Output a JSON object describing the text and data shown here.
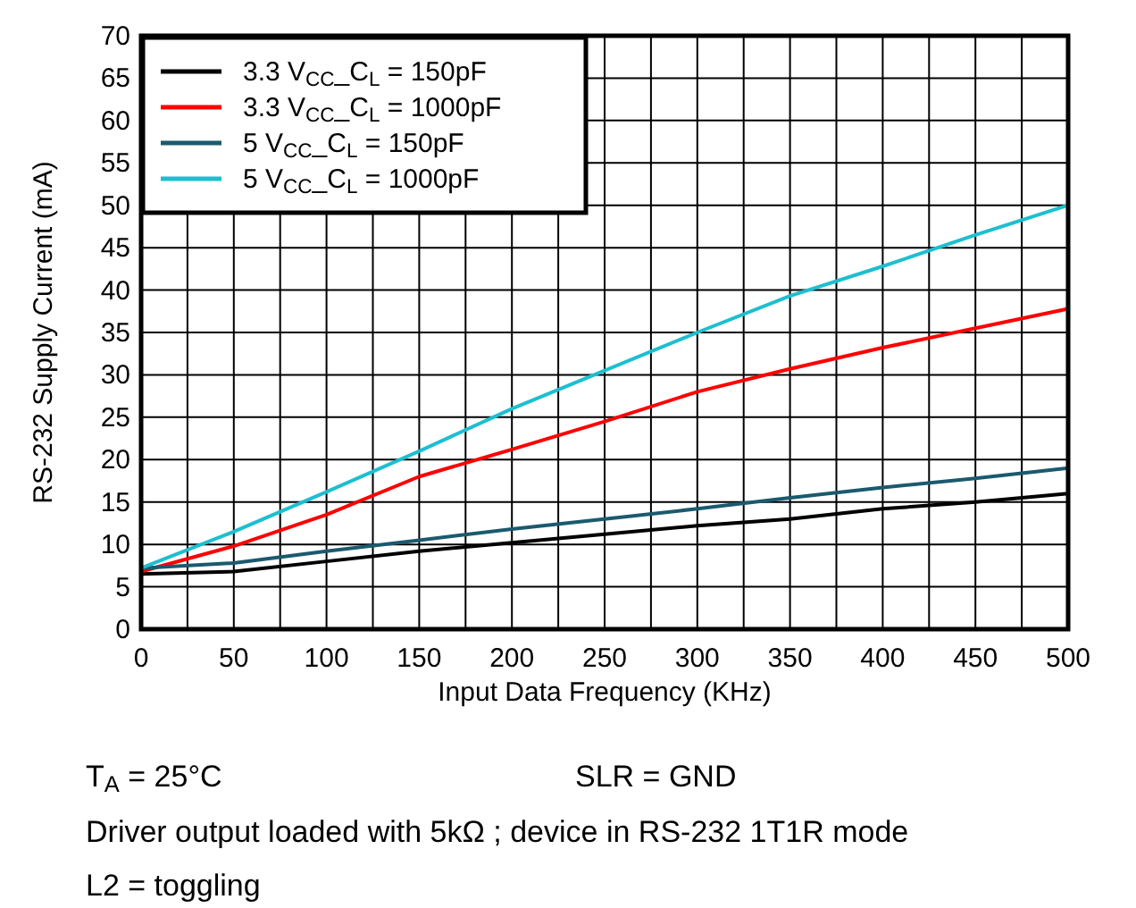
{
  "chart_data": {
    "type": "line",
    "xlabel": "Input Data Frequency (KHz)",
    "ylabel": "RS-232 Supply Current (mA)",
    "x": [
      0,
      50,
      100,
      150,
      200,
      250,
      300,
      350,
      400,
      450,
      500
    ],
    "series": [
      {
        "name": "3.3 V$_{CC}$_C$_{L}$ = 150pF",
        "color": "#000000",
        "values": [
          6.5,
          6.8,
          8,
          9.2,
          10.2,
          11.2,
          12.2,
          13,
          14.2,
          15,
          16
        ]
      },
      {
        "name": "3.3 V$_{CC}$_C$_{L}$ = 1000pF",
        "color": "#ff0000",
        "values": [
          6.8,
          9.8,
          13.5,
          18,
          21.2,
          24.5,
          28,
          30.7,
          33.2,
          35.5,
          37.8
        ]
      },
      {
        "name": "5 V$_{CC}$_C$_{L}$ = 150pF",
        "color": "#1a5a6e",
        "values": [
          7.2,
          7.8,
          9.2,
          10.5,
          11.8,
          13,
          14.2,
          15.5,
          16.7,
          17.8,
          19
        ]
      },
      {
        "name": "5 V$_{CC}$_C$_{L}$ = 1000pF",
        "color": "#1cbfd0",
        "values": [
          7.2,
          11.5,
          16.2,
          21,
          26,
          30.5,
          35,
          39.3,
          42.8,
          46.5,
          50
        ]
      }
    ],
    "xlim": [
      0,
      500
    ],
    "xticks": [
      0,
      {
        "value": 25,
        "label": null
      },
      50,
      {
        "value": 75,
        "label": null
      },
      100,
      {
        "value": 125,
        "label": null
      },
      150,
      {
        "value": 175,
        "label": null
      },
      200,
      {
        "value": 225,
        "label": null
      },
      250,
      {
        "value": 275,
        "label": null
      },
      300,
      {
        "value": 325,
        "label": null
      },
      350,
      {
        "value": 375,
        "label": null
      },
      400,
      {
        "value": 425,
        "label": null
      },
      450,
      {
        "value": 475,
        "label": null
      },
      500
    ],
    "ylim": [
      0,
      70
    ],
    "yticks": [
      0,
      5,
      10,
      15,
      20,
      25,
      30,
      35,
      40,
      45,
      50,
      55,
      60,
      65,
      70
    ],
    "grid": true,
    "legend": "top left",
    "marker": "none",
    "line_style": "solid",
    "annotations": [
      "T$_{A}$ = 25°C",
      "SLR = GND",
      "Driver output loaded with 5kΩ ; device in RS-232 1T1R mode",
      "L2 = toggling"
    ]
  }
}
